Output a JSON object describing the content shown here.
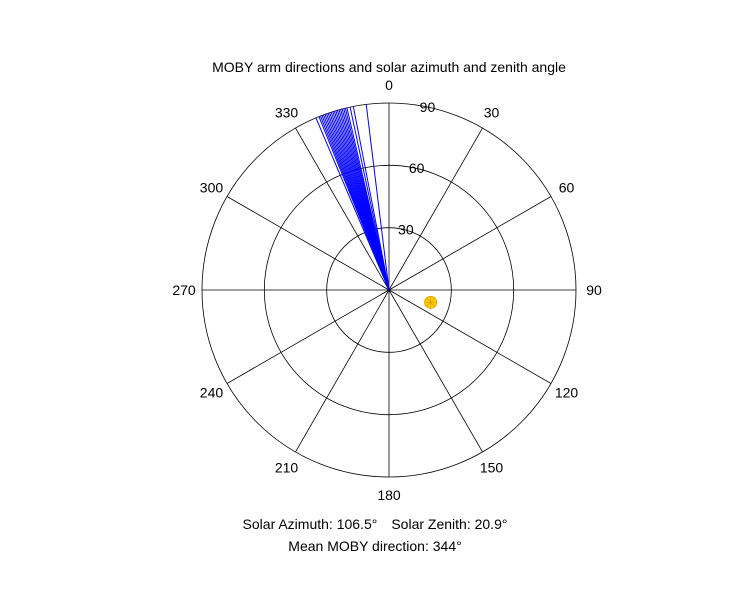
{
  "chart_data": {
    "type": "polar",
    "title": "MOBY arm directions and solar azimuth and zenith angle",
    "angle_ticks": [
      "0",
      "30",
      "60",
      "90",
      "120",
      "150",
      "180",
      "210",
      "240",
      "270",
      "300",
      "330"
    ],
    "radial_ticks": [
      "30",
      "60",
      "90"
    ],
    "radial_max": 90,
    "theta_zero": "top",
    "theta_direction": "clockwise",
    "moby_arm_directions": [
      337,
      338,
      338.5,
      339,
      339.5,
      340,
      340.5,
      341,
      341.5,
      342,
      342.5,
      343,
      343.5,
      344,
      344.5,
      345,
      345.5,
      346,
      346.5,
      347,
      348,
      349,
      353
    ],
    "solar_position": {
      "azimuth": 106.5,
      "zenith": 20.9
    },
    "colors": {
      "arms": "#0000ff",
      "sun_fill": "#ffd700",
      "sun_edge": "#e8a000",
      "grid": "#000000"
    }
  },
  "captions": {
    "solar_azimuth": "Solar Azimuth: 106.5°",
    "solar_zenith": "Solar Zenith: 20.9°",
    "mean_direction": "Mean MOBY direction: 344°"
  }
}
